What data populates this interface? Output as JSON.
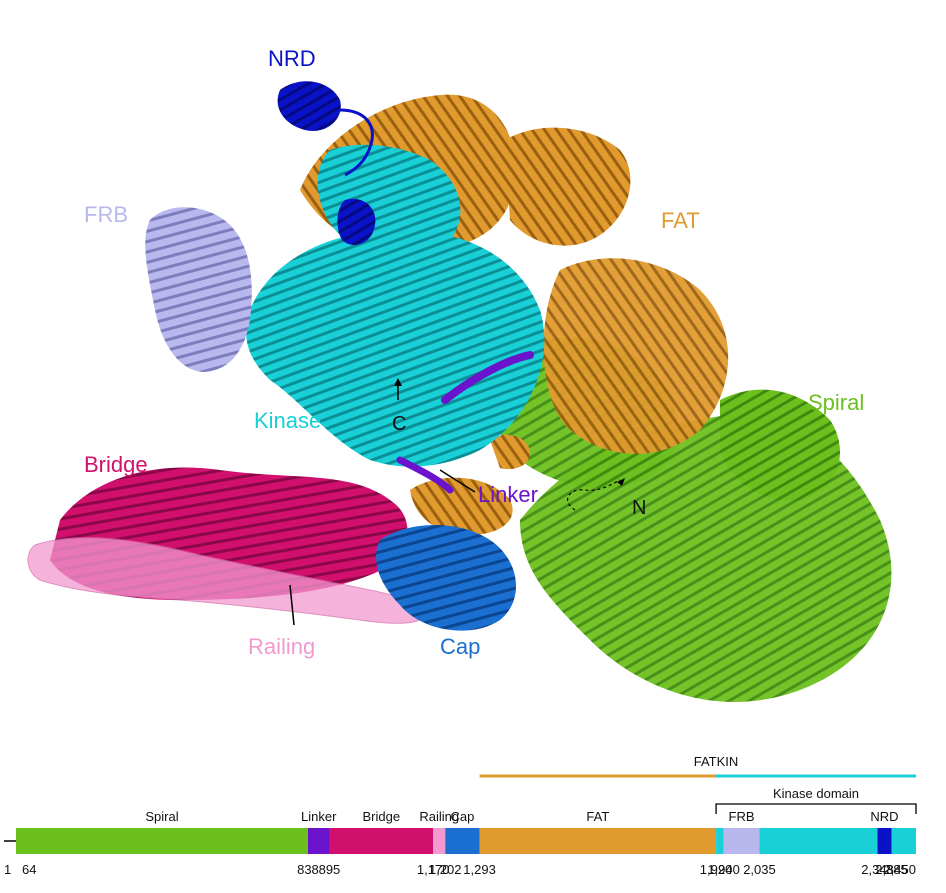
{
  "structure_labels": {
    "nrd": "NRD",
    "fat": "FAT",
    "frb": "FRB",
    "kinase": "Kinase",
    "spiral": "Spiral",
    "bridge": "Bridge",
    "linker": "Linker",
    "railing": "Railing",
    "cap": "Cap",
    "c_terminus": "C",
    "n_terminus": "N"
  },
  "domain_colors": {
    "spiral": "#6cc01e",
    "linker": "#6a12cc",
    "bridge": "#d1106e",
    "railing": "#f29ad0",
    "cap": "#1a6fd0",
    "fat": "#e19a2e",
    "kinase": "#18d0d6",
    "frb": "#b8b8ef",
    "nrd": "#0a12c8"
  },
  "map": {
    "fatkin_label": "FATKIN",
    "kinase_domain_label": "Kinase domain",
    "segments": [
      {
        "name": "Spiral",
        "start": 64,
        "end": 838,
        "color": "#6cc01e",
        "label": "Spiral"
      },
      {
        "name": "Linker",
        "start": 838,
        "end": 895,
        "color": "#6a12cc",
        "label": "Linker"
      },
      {
        "name": "Bridge",
        "start": 895,
        "end": 1170,
        "color": "#d1106e",
        "label": "Bridge"
      },
      {
        "name": "Railing",
        "start": 1170,
        "end": 1202,
        "color": "#f29ad0",
        "label": "Railing"
      },
      {
        "name": "Cap",
        "start": 1202,
        "end": 1293,
        "color": "#1a6fd0",
        "label": "Cap"
      },
      {
        "name": "FAT",
        "start": 1293,
        "end": 1920,
        "color": "#e19a2e",
        "label": "FAT"
      },
      {
        "name": "Kinase",
        "start": 1920,
        "end": 1940,
        "color": "#18d0d6",
        "label": ""
      },
      {
        "name": "FRB",
        "start": 1940,
        "end": 2035,
        "color": "#b8b8ef",
        "label": "FRB"
      },
      {
        "name": "Kinase",
        "start": 2035,
        "end": 2348,
        "color": "#18d0d6",
        "label": ""
      },
      {
        "name": "NRD",
        "start": 2348,
        "end": 2385,
        "color": "#0a12c8",
        "label": "NRD"
      },
      {
        "name": "Kinase",
        "start": 2385,
        "end": 2450,
        "color": "#18d0d6",
        "label": ""
      }
    ],
    "ticks": [
      "1",
      "64",
      "838",
      "895",
      "1,170",
      "1,202",
      "1,293",
      "1,920",
      "1,940",
      "2,035",
      "2,348",
      "2,385",
      "2,450"
    ]
  }
}
